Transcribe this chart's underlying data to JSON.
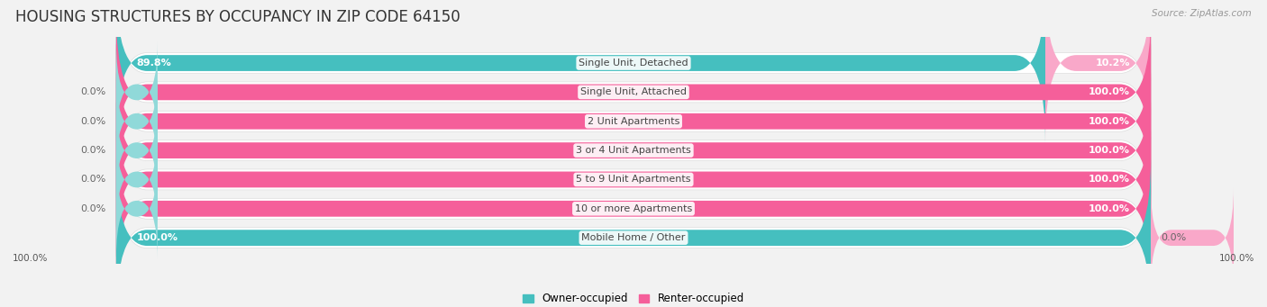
{
  "title": "HOUSING STRUCTURES BY OCCUPANCY IN ZIP CODE 64150",
  "source": "Source: ZipAtlas.com",
  "categories": [
    "Single Unit, Detached",
    "Single Unit, Attached",
    "2 Unit Apartments",
    "3 or 4 Unit Apartments",
    "5 to 9 Unit Apartments",
    "10 or more Apartments",
    "Mobile Home / Other"
  ],
  "owner_pct": [
    89.8,
    0.0,
    0.0,
    0.0,
    0.0,
    0.0,
    100.0
  ],
  "renter_pct": [
    10.2,
    100.0,
    100.0,
    100.0,
    100.0,
    100.0,
    0.0
  ],
  "owner_color": "#45BFBF",
  "renter_color": "#F55F9A",
  "renter_light_color": "#F9A8C9",
  "owner_light_color": "#90D9D9",
  "bg_color": "#F2F2F2",
  "row_bg_color": "#FFFFFF",
  "row_border_color": "#DDDDDD",
  "title_fontsize": 12,
  "label_fontsize": 8,
  "pct_fontsize": 8,
  "bar_height": 0.55,
  "figsize": [
    14.06,
    3.41
  ],
  "dpi": 100
}
